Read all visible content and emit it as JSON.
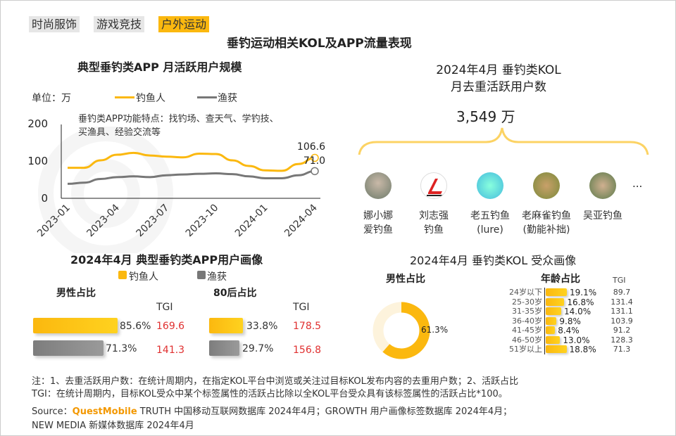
{
  "tabs": [
    {
      "label": "时尚服饰",
      "active": false
    },
    {
      "label": "游戏竞技",
      "active": false
    },
    {
      "label": "户外运动",
      "active": true
    }
  ],
  "title": "垂钓运动相关KOL及APP流量表现",
  "watermark": "QUEST MOBILE",
  "colors": {
    "accent": "#fbb80f",
    "gray": "#777777",
    "red": "#e03030"
  },
  "chart_data": [
    {
      "type": "line",
      "title": "典型垂钓类APP 月活跃用户规模",
      "unit": "单位：万",
      "annotation": "垂钓类APP功能特点：找钓场、查天气、学钓技、\n买渔具、经验交流等",
      "x": [
        "2023-01",
        "2023-02",
        "2023-03",
        "2023-04",
        "2023-05",
        "2023-06",
        "2023-07",
        "2023-08",
        "2023-09",
        "2023-10",
        "2023-11",
        "2023-12",
        "2024-01",
        "2024-02",
        "2024-03",
        "2024-04"
      ],
      "xticks": [
        "2023-01",
        "2023-04",
        "2023-07",
        "2023-10",
        "2024-01",
        "2024-04"
      ],
      "yticks": [
        "0",
        "100",
        "200"
      ],
      "ylim": [
        0,
        200
      ],
      "series": [
        {
          "name": "钓鱼人",
          "color": "#fbb80f",
          "values": [
            80,
            80,
            100,
            115,
            120,
            113,
            110,
            108,
            118,
            117,
            100,
            85,
            73,
            72,
            90,
            106.6
          ],
          "end_label": "106.6"
        },
        {
          "name": "渔获",
          "color": "#777777",
          "values": [
            37,
            40,
            50,
            55,
            57,
            55,
            60,
            62,
            64,
            65,
            63,
            57,
            52,
            52,
            60,
            71.0
          ],
          "end_label": "71.0"
        }
      ]
    },
    {
      "type": "bar",
      "title": "2024年4月 典型垂钓类APP用户画像",
      "legend": [
        "钓鱼人",
        "渔获"
      ],
      "groups": [
        {
          "label": "男性占比",
          "tgi_label": "TGI",
          "values": [
            {
              "series": "钓鱼人",
              "value": 85.6,
              "text": "85.6%",
              "tgi": "169.6"
            },
            {
              "series": "渔获",
              "value": 71.3,
              "text": "71.3%",
              "tgi": "141.3"
            }
          ]
        },
        {
          "label": "80后占比",
          "tgi_label": "TGI",
          "values": [
            {
              "series": "钓鱼人",
              "value": 33.8,
              "text": "33.8%",
              "tgi": "178.5"
            },
            {
              "series": "渔获",
              "value": 29.7,
              "text": "29.7%",
              "tgi": "156.8"
            }
          ]
        }
      ]
    },
    {
      "type": "pie",
      "title": "男性占比",
      "values": [
        61.3,
        38.7
      ],
      "label": "61.3%"
    },
    {
      "type": "bar",
      "title": "年龄占比",
      "tgi_label": "TGI",
      "categories": [
        "24岁以下",
        "25-30岁",
        "31-35岁",
        "36-40岁",
        "41-45岁",
        "46-50岁",
        "51岁以上"
      ],
      "values": [
        19.1,
        16.8,
        14.0,
        9.8,
        8.4,
        13.0,
        18.8
      ],
      "labels": [
        "19.1%",
        "16.8%",
        "14.0%",
        "9.8%",
        "8.4%",
        "13.0%",
        "18.8%"
      ],
      "tgi": [
        "89.7",
        "131.4",
        "131.1",
        "103.9",
        "91.2",
        "128.3",
        "71.3"
      ],
      "tgi_red": [
        false,
        true,
        true,
        false,
        false,
        false,
        false
      ]
    }
  ],
  "kol": {
    "title_line1": "2024年4月 垂钓类KOL",
    "title_line2": "月去重活跃用户数",
    "total": "3,549",
    "total_unit": "万",
    "more": "...",
    "items": [
      {
        "name": "娜小娜\n爱钓鱼"
      },
      {
        "name": "刘志强\n钓鱼"
      },
      {
        "name": "老五钓鱼\n(lure)"
      },
      {
        "name": "老麻雀钓鱼\n(勤能补拙)"
      },
      {
        "name": "吴亚钓鱼"
      }
    ]
  },
  "audience_title": "2024年4月 垂钓类KOL 受众画像",
  "notes": {
    "line1": "注：1、去重活跃用户数：在统计周期内，在指定KOL平台中浏览或关注过目标KOL发布内容的去重用户数；2、活跃占比",
    "line2": "TGI：在统计周期内，目标KOL受众中某个标签属性的活跃占比除以全KOL平台受众具有该标签属性的活跃占比*100。",
    "source_prefix": "Source：",
    "source_brand": "QuestMobile",
    "source_rest": " TRUTH 中国移动互联网数据库 2024年4月；GROWTH 用户画像标签数据库 2024年4月；",
    "line4": "NEW MEDIA 新媒体数据库 2024年4月"
  }
}
